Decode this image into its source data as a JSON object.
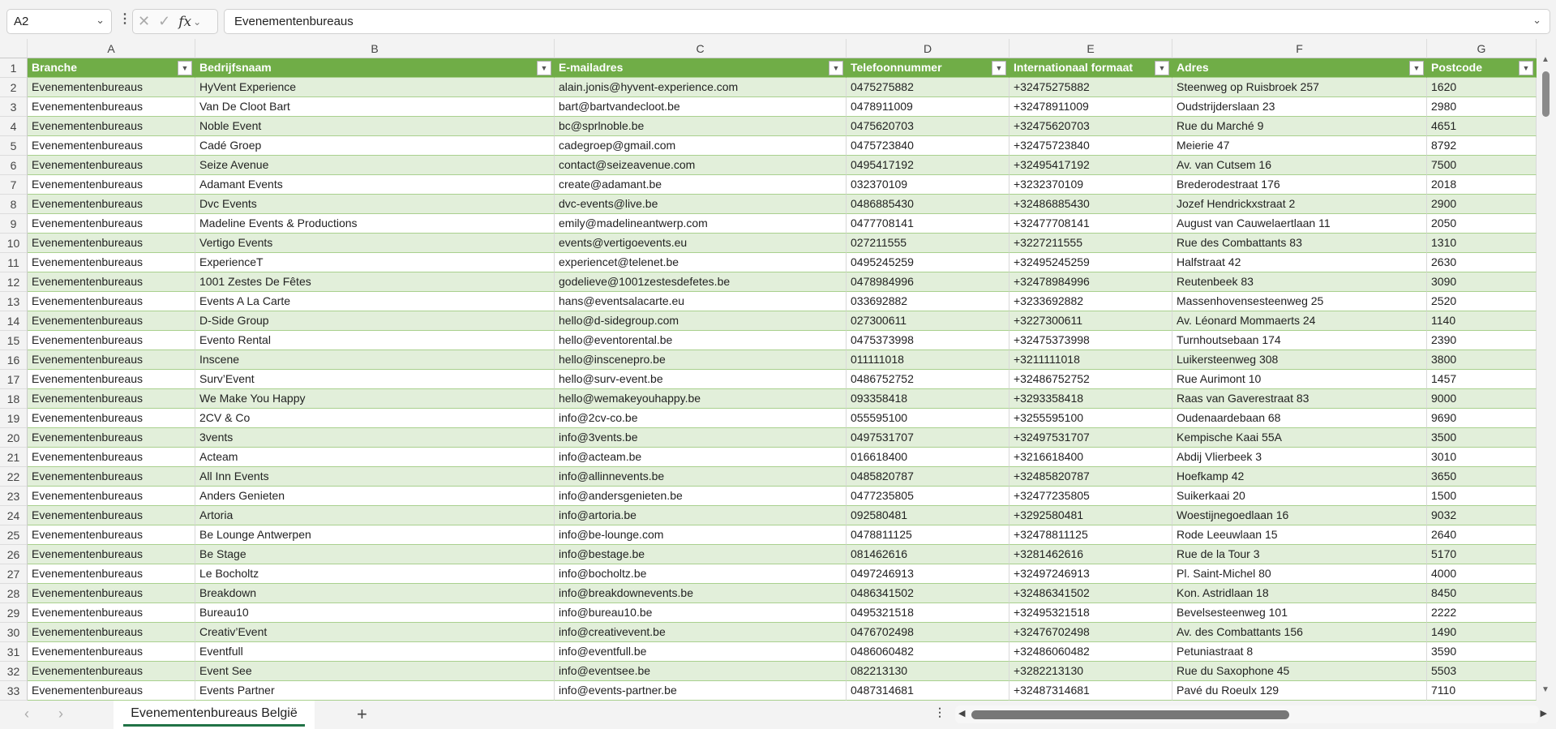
{
  "formula_bar": {
    "name_box": "A2",
    "formula": "Evenementenbureaus"
  },
  "columns": [
    "A",
    "B",
    "C",
    "D",
    "E",
    "F",
    "G"
  ],
  "headers": [
    "Branche",
    "Bedrijfsnaam",
    "E-mailadres",
    "Telefoonnummer",
    "Internationaal formaat",
    "Adres",
    "Postcode"
  ],
  "rows": [
    [
      "Evenementenbureaus",
      "HyVent Experience",
      "alain.jonis@hyvent-experience.com",
      "0475275882",
      "+32475275882",
      "Steenweg op Ruisbroek 257",
      "1620"
    ],
    [
      "Evenementenbureaus",
      "Van De Cloot Bart",
      "bart@bartvandecloot.be",
      "0478911009",
      "+32478911009",
      "Oudstrijderslaan 23",
      "2980"
    ],
    [
      "Evenementenbureaus",
      "Noble Event",
      "bc@sprlnoble.be",
      "0475620703",
      "+32475620703",
      "Rue du Marché 9",
      "4651"
    ],
    [
      "Evenementenbureaus",
      "Cadé Groep",
      "cadegroep@gmail.com",
      "0475723840",
      "+32475723840",
      "Meierie 47",
      "8792"
    ],
    [
      "Evenementenbureaus",
      "Seize Avenue",
      "contact@seizeavenue.com",
      "0495417192",
      "+32495417192",
      "Av. van Cutsem 16",
      "7500"
    ],
    [
      "Evenementenbureaus",
      "Adamant Events",
      "create@adamant.be",
      "032370109",
      "+3232370109",
      "Brederodestraat 176",
      "2018"
    ],
    [
      "Evenementenbureaus",
      "Dvc Events",
      "dvc-events@live.be",
      "0486885430",
      "+32486885430",
      "Jozef Hendrickxstraat 2",
      "2900"
    ],
    [
      "Evenementenbureaus",
      "Madeline Events & Productions",
      "emily@madelineantwerp.com",
      "0477708141",
      "+32477708141",
      "August van Cauwelaertlaan 11",
      "2050"
    ],
    [
      "Evenementenbureaus",
      "Vertigo Events",
      "events@vertigoevents.eu",
      "027211555",
      "+3227211555",
      "Rue des Combattants 83",
      "1310"
    ],
    [
      "Evenementenbureaus",
      "ExperienceT",
      "experiencet@telenet.be",
      "0495245259",
      "+32495245259",
      "Halfstraat 42",
      "2630"
    ],
    [
      "Evenementenbureaus",
      "1001 Zestes De Fêtes",
      "godelieve@1001zestesdefetes.be",
      "0478984996",
      "+32478984996",
      "Reutenbeek 83",
      "3090"
    ],
    [
      "Evenementenbureaus",
      "Events A La Carte",
      "hans@eventsalacarte.eu",
      "033692882",
      "+3233692882",
      "Massenhovensesteenweg 25",
      "2520"
    ],
    [
      "Evenementenbureaus",
      "D-Side Group",
      "hello@d-sidegroup.com",
      "027300611",
      "+3227300611",
      "Av. Léonard Mommaerts 24",
      "1140"
    ],
    [
      "Evenementenbureaus",
      "Evento Rental",
      "hello@eventorental.be",
      "0475373998",
      "+32475373998",
      "Turnhoutsebaan 174",
      "2390"
    ],
    [
      "Evenementenbureaus",
      "Inscene",
      "hello@inscenepro.be",
      "011111018",
      "+3211111018",
      "Luikersteenweg 308",
      "3800"
    ],
    [
      "Evenementenbureaus",
      "Surv’Event",
      "hello@surv-event.be",
      "0486752752",
      "+32486752752",
      "Rue Aurimont 10",
      "1457"
    ],
    [
      "Evenementenbureaus",
      "We Make You Happy",
      "hello@wemakeyouhappy.be",
      "093358418",
      "+3293358418",
      "Raas van Gaverestraat 83",
      "9000"
    ],
    [
      "Evenementenbureaus",
      "2CV & Co",
      "info@2cv-co.be",
      "055595100",
      "+3255595100",
      "Oudenaardebaan 68",
      "9690"
    ],
    [
      "Evenementenbureaus",
      "3vents",
      "info@3vents.be",
      "0497531707",
      "+32497531707",
      "Kempische Kaai 55A",
      "3500"
    ],
    [
      "Evenementenbureaus",
      "Acteam",
      "info@acteam.be",
      "016618400",
      "+3216618400",
      "Abdij Vlierbeek 3",
      "3010"
    ],
    [
      "Evenementenbureaus",
      "All Inn Events",
      "info@allinnevents.be",
      "0485820787",
      "+32485820787",
      "Hoefkamp 42",
      "3650"
    ],
    [
      "Evenementenbureaus",
      "Anders Genieten",
      "info@andersgenieten.be",
      "0477235805",
      "+32477235805",
      "Suikerkaai 20",
      "1500"
    ],
    [
      "Evenementenbureaus",
      "Artoria",
      "info@artoria.be",
      "092580481",
      "+3292580481",
      "Woestijnegoedlaan 16",
      "9032"
    ],
    [
      "Evenementenbureaus",
      "Be Lounge Antwerpen",
      "info@be-lounge.com",
      "0478811125",
      "+32478811125",
      "Rode Leeuwlaan 15",
      "2640"
    ],
    [
      "Evenementenbureaus",
      "Be Stage",
      "info@bestage.be",
      "081462616",
      "+3281462616",
      "Rue de la Tour 3",
      "5170"
    ],
    [
      "Evenementenbureaus",
      "Le Bocholtz",
      "info@bocholtz.be",
      "0497246913",
      "+32497246913",
      "Pl. Saint-Michel 80",
      "4000"
    ],
    [
      "Evenementenbureaus",
      "Breakdown",
      "info@breakdownevents.be",
      "0486341502",
      "+32486341502",
      "Kon. Astridlaan 18",
      "8450"
    ],
    [
      "Evenementenbureaus",
      "Bureau10",
      "info@bureau10.be",
      "0495321518",
      "+32495321518",
      "Bevelsesteenweg 101",
      "2222"
    ],
    [
      "Evenementenbureaus",
      "Creativ’Event",
      "info@creativevent.be",
      "0476702498",
      "+32476702498",
      "Av. des Combattants 156",
      "1490"
    ],
    [
      "Evenementenbureaus",
      "Eventfull",
      "info@eventfull.be",
      "0486060482",
      "+32486060482",
      "Petuniastraat 8",
      "3590"
    ],
    [
      "Evenementenbureaus",
      "Event See",
      "info@eventsee.be",
      "082213130",
      "+3282213130",
      "Rue du Saxophone 45",
      "5503"
    ],
    [
      "Evenementenbureaus",
      "Events Partner",
      "info@events-partner.be",
      "0487314681",
      "+32487314681",
      "Pavé du Roeulx 129",
      "7110"
    ]
  ],
  "sheet_tabs": [
    {
      "label": "Evenementenbureaus België",
      "active": true
    }
  ],
  "colors": {
    "header_green": "#70ad47",
    "band_green": "#e2efda",
    "tab_underline": "#217346"
  },
  "icons": {
    "namebox": "chevron-down-icon",
    "cancel": "x-icon",
    "enter": "check-icon",
    "function": "fx-icon",
    "filter": "filter-dropdown-icon",
    "add_sheet": "plus-icon"
  }
}
